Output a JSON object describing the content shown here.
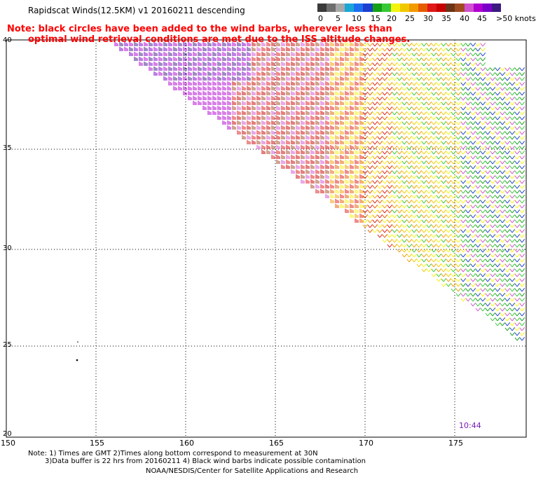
{
  "title": "Rapidscat Winds(12.5KM) v1 20160211 descending",
  "note": {
    "line1": "Note: black circles have been added to the wind barbs, wherever less than",
    "line2": "optimal wind retrieval conditions are met due to the ISS altitude changes."
  },
  "colorbar": {
    "colors": [
      "#3a3a3a",
      "#6e6e6e",
      "#a8a8a8",
      "#1aa7d8",
      "#1e6ff0",
      "#1c3fd0",
      "#14a014",
      "#36c836",
      "#f3f30d",
      "#f0c800",
      "#f39a00",
      "#e65c00",
      "#e01818",
      "#c80000",
      "#6a3418",
      "#a04a20",
      "#d050d0",
      "#b000d0",
      "#7a00c8",
      "#3c1a80"
    ],
    "labels": [
      "0",
      "5",
      "10",
      "15",
      "20",
      "25",
      "30",
      "35",
      "40",
      "45",
      ">50 knots"
    ]
  },
  "lat_labels": [
    "40",
    "35",
    "30",
    "25",
    "20"
  ],
  "lon_labels": [
    "150",
    "155",
    "160",
    "165",
    "170",
    "175"
  ],
  "pass_time": "10:44",
  "footer": {
    "line1": "Note: 1) Times are GMT 2)Times along bottom correspond to measurement at 30N",
    "line2": "3)Data buffer is 22 hrs from 20160211 4) Black wind barbs indicate possible contamination",
    "line3": "NOAA/NESDIS/Center for Satellite Applications and Research"
  },
  "map": {
    "lon_range": [
      150,
      179.5
    ],
    "lat_range": [
      20,
      40.5
    ],
    "swath": "upper-right diagonal band, about 157E 40N to 179E 25N"
  }
}
